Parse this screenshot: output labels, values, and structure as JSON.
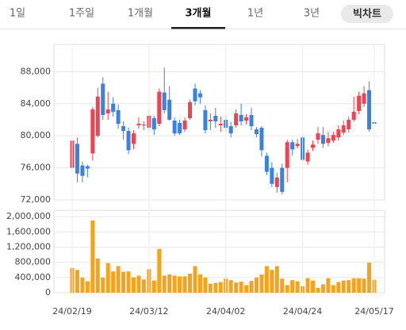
{
  "tabs": [
    "1일",
    "1주일",
    "1개월",
    "3개월",
    "1년",
    "3년"
  ],
  "selected_tab": 3,
  "big_chart_button": "빅차트",
  "chart_data": [
    {
      "type": "candlestick",
      "up_color": "#ec4452",
      "down_color": "#3a82df",
      "open": [
        76000,
        79000,
        76300,
        76200,
        77800,
        80000,
        86500,
        82800,
        84000,
        83200,
        81200,
        80600,
        79000,
        81300,
        81300,
        81000,
        82200,
        81500,
        85400,
        84500,
        81900,
        81600,
        80800,
        82200,
        85900,
        85300,
        83200,
        81800,
        82500,
        81300,
        82000,
        81200,
        81300,
        82600,
        81900,
        82600,
        80800,
        81000,
        77500,
        76000,
        73600,
        76000,
        76000,
        79200,
        78700,
        79800,
        76800,
        78500,
        79500,
        80100,
        79100,
        79400,
        79800,
        80400,
        80800,
        82000,
        83100,
        84000,
        85700,
        81700
      ],
      "high": [
        80000,
        79800,
        76800,
        76400,
        83600,
        86000,
        87300,
        85500,
        84800,
        83900,
        81800,
        81000,
        80700,
        82300,
        81800,
        83300,
        82500,
        85900,
        88500,
        86200,
        82300,
        82000,
        82300,
        84500,
        86500,
        85700,
        83800,
        82800,
        83500,
        82400,
        82500,
        81700,
        83300,
        84000,
        82700,
        83500,
        81100,
        81200,
        77900,
        76700,
        75400,
        76500,
        79500,
        79500,
        79600,
        80000,
        78300,
        79400,
        81100,
        81100,
        80500,
        80500,
        81300,
        81900,
        82400,
        84900,
        85500,
        86200,
        86800,
        82900
      ],
      "low": [
        75000,
        74200,
        74200,
        74800,
        76900,
        79800,
        82000,
        82000,
        82400,
        80900,
        79500,
        77700,
        78300,
        80900,
        80700,
        80500,
        80100,
        81200,
        82800,
        81900,
        80000,
        80100,
        80500,
        82000,
        83800,
        84000,
        80300,
        80700,
        81000,
        80500,
        80500,
        79800,
        81000,
        81300,
        81400,
        80700,
        79800,
        77400,
        75100,
        73600,
        72900,
        72700,
        74200,
        77500,
        78400,
        76800,
        76400,
        78100,
        79000,
        78500,
        78700,
        79100,
        79400,
        80100,
        80400,
        81800,
        82700,
        83600,
        80500,
        80800
      ],
      "close": [
        79400,
        75300,
        75000,
        75900,
        83300,
        84900,
        82600,
        83300,
        83000,
        81500,
        80600,
        78200,
        80300,
        81500,
        81400,
        82500,
        80800,
        85500,
        83200,
        82000,
        80300,
        80300,
        81900,
        84200,
        84300,
        84800,
        80700,
        82000,
        81800,
        81500,
        81000,
        80300,
        82800,
        81800,
        82300,
        81200,
        80200,
        78200,
        75500,
        74000,
        74800,
        73000,
        79200,
        78300,
        79000,
        77000,
        77900,
        78900,
        80300,
        79000,
        79700,
        80100,
        80800,
        81300,
        82000,
        83000,
        85000,
        85300,
        80800,
        81500
      ],
      "ylim": [
        72000,
        91400
      ],
      "yticks": [
        {
          "value": 72000,
          "label": "72,000"
        },
        {
          "value": 76000,
          "label": "76,000"
        },
        {
          "value": 80000,
          "label": "80,000"
        },
        {
          "value": 84000,
          "label": "84,000"
        },
        {
          "value": 88000,
          "label": "88,000"
        }
      ],
      "grid": true
    },
    {
      "type": "bar",
      "color": "#f7a21b",
      "categories": [
        "24/02/19",
        null,
        null,
        null,
        null,
        null,
        null,
        null,
        null,
        null,
        null,
        null,
        null,
        null,
        null,
        "24/03/12",
        null,
        null,
        null,
        null,
        null,
        null,
        null,
        null,
        null,
        null,
        null,
        null,
        null,
        null,
        "24/04/02",
        null,
        null,
        null,
        null,
        null,
        null,
        null,
        null,
        null,
        null,
        null,
        null,
        null,
        null,
        "24/04/24",
        null,
        null,
        null,
        null,
        null,
        null,
        null,
        null,
        null,
        null,
        null,
        null,
        null,
        "24/05/17"
      ],
      "values": [
        650000,
        600000,
        400000,
        300000,
        1900000,
        900000,
        400000,
        780000,
        560000,
        700000,
        550000,
        560000,
        400000,
        450000,
        350000,
        620000,
        320000,
        1150000,
        450000,
        480000,
        450000,
        430000,
        430000,
        500000,
        700000,
        480000,
        400000,
        240000,
        260000,
        280000,
        370000,
        330000,
        270000,
        290000,
        200000,
        310000,
        400000,
        480000,
        700000,
        600000,
        700000,
        370000,
        200000,
        330000,
        300000,
        170000,
        380000,
        320000,
        130000,
        220000,
        380000,
        200000,
        280000,
        320000,
        330000,
        380000,
        380000,
        370000,
        790000,
        340000
      ],
      "ylim": [
        0,
        2170000
      ],
      "yticks": [
        0,
        {
          "value": 400000,
          "label": "400,000"
        },
        {
          "value": 800000,
          "label": "800,000"
        },
        {
          "value": 1200000,
          "label": "1,200,000"
        },
        {
          "value": 1600000,
          "label": "1,600,000"
        },
        {
          "value": 2000000,
          "label": "2,000,000"
        }
      ],
      "grid": true
    }
  ]
}
